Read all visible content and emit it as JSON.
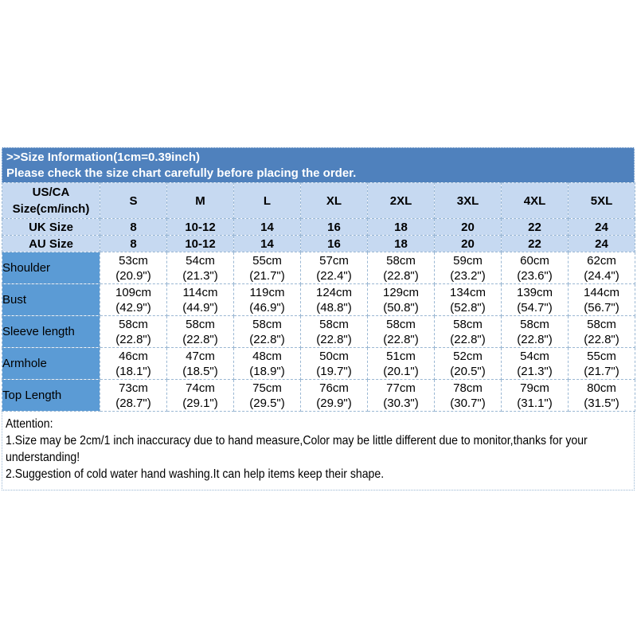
{
  "title_bar": {
    "line1": ">>Size Information(1cm=0.39inch)",
    "line2": "Please check the size chart carefully before placing the order."
  },
  "table": {
    "header_label_line1": "US/CA",
    "header_label_line2": "Size(cm/inch)",
    "columns": [
      "S",
      "M",
      "L",
      "XL",
      "2XL",
      "3XL",
      "4XL",
      "5XL"
    ],
    "size_rows": [
      {
        "label": "UK Size",
        "values": [
          "8",
          "10-12",
          "14",
          "16",
          "18",
          "20",
          "22",
          "24"
        ]
      },
      {
        "label": "AU Size",
        "values": [
          "8",
          "10-12",
          "14",
          "16",
          "18",
          "20",
          "22",
          "24"
        ]
      }
    ],
    "measurements": [
      {
        "label": "Shoulder",
        "cm": [
          "53cm",
          "54cm",
          "55cm",
          "57cm",
          "58cm",
          "59cm",
          "60cm",
          "62cm"
        ],
        "inch": [
          "(20.9\")",
          "(21.3\")",
          "(21.7\")",
          "(22.4\")",
          "(22.8\")",
          "(23.2\")",
          "(23.6\")",
          "(24.4\")"
        ]
      },
      {
        "label": "Bust",
        "cm": [
          "109cm",
          "114cm",
          "119cm",
          "124cm",
          "129cm",
          "134cm",
          "139cm",
          "144cm"
        ],
        "inch": [
          "(42.9\")",
          "(44.9\")",
          "(46.9\")",
          "(48.8\")",
          "(50.8\")",
          "(52.8\")",
          "(54.7\")",
          "(56.7\")"
        ]
      },
      {
        "label": "Sleeve length",
        "cm": [
          "58cm",
          "58cm",
          "58cm",
          "58cm",
          "58cm",
          "58cm",
          "58cm",
          "58cm"
        ],
        "inch": [
          "(22.8\")",
          "(22.8\")",
          "(22.8\")",
          "(22.8\")",
          "(22.8\")",
          "(22.8\")",
          "(22.8\")",
          "(22.8\")"
        ]
      },
      {
        "label": "Armhole",
        "cm": [
          "46cm",
          "47cm",
          "48cm",
          "50cm",
          "51cm",
          "52cm",
          "54cm",
          "55cm"
        ],
        "inch": [
          "(18.1\")",
          "(18.5\")",
          "(18.9\")",
          "(19.7\")",
          "(20.1\")",
          "(20.5\")",
          "(21.3\")",
          "(21.7\")"
        ]
      },
      {
        "label": "Top Length",
        "cm": [
          "73cm",
          "74cm",
          "75cm",
          "76cm",
          "77cm",
          "78cm",
          "79cm",
          "80cm"
        ],
        "inch": [
          "(28.7\")",
          "(29.1\")",
          "(29.5\")",
          "(29.9\")",
          "(30.3\")",
          "(30.7\")",
          "(31.1\")",
          "(31.5\")"
        ]
      }
    ]
  },
  "attention": {
    "heading": "Attention:",
    "note1": "1.Size may be 2cm/1 inch inaccuracy due to hand measure,Color may be little different due to monitor,thanks for your understanding!",
    "note2": "2.Suggestion of cold water hand washing.It can help items keep their shape."
  },
  "colors": {
    "title_bg": "#4f81bd",
    "header_bg": "#c6d9f1",
    "label_bg": "#5b9bd5",
    "grid_border": "#9ab7d3"
  }
}
